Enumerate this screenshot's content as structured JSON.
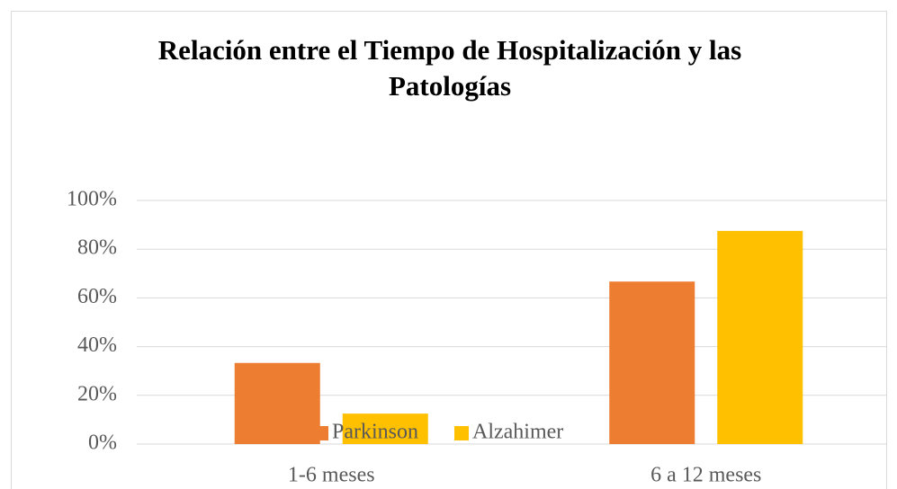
{
  "chart_data": {
    "type": "bar",
    "title": "Relación entre el Tiempo de Hospitalización y las Patologías",
    "categories": [
      "1-6 meses",
      "6 a 12 meses"
    ],
    "series": [
      {
        "name": "Parkinson",
        "color": "#ed7d31",
        "values": [
          33.3,
          66.7
        ]
      },
      {
        "name": "Alzahimer",
        "color": "#ffc000",
        "values": [
          12.5,
          87.5
        ]
      }
    ],
    "ylim": [
      0,
      100
    ],
    "yticks": [
      {
        "value": 0,
        "label": "0%"
      },
      {
        "value": 20,
        "label": "20%"
      },
      {
        "value": 40,
        "label": "40%"
      },
      {
        "value": 60,
        "label": "60%"
      },
      {
        "value": 80,
        "label": "80%"
      },
      {
        "value": 100,
        "label": "100%"
      }
    ],
    "grid": true
  }
}
